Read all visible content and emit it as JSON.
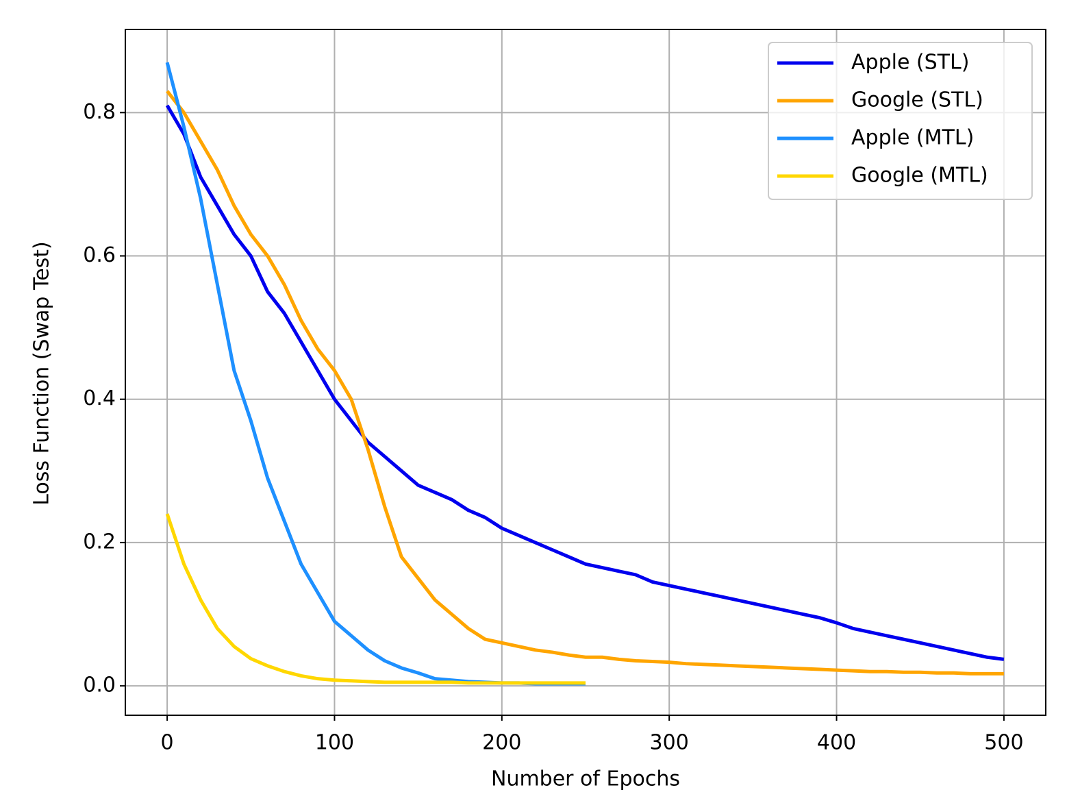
{
  "chart_data": {
    "type": "line",
    "xlabel": "Number of Epochs",
    "ylabel": "Loss Function (Swap Test)",
    "x": [
      0,
      10,
      20,
      30,
      40,
      50,
      60,
      70,
      80,
      90,
      100,
      110,
      120,
      130,
      140,
      150,
      160,
      170,
      180,
      190,
      200,
      210,
      220,
      230,
      240,
      250,
      260,
      270,
      280,
      290,
      300,
      310,
      320,
      330,
      340,
      350,
      360,
      370,
      380,
      390,
      400,
      410,
      420,
      430,
      440,
      450,
      460,
      470,
      480,
      490,
      500
    ],
    "series": [
      {
        "name": "Apple (STL)",
        "color": "#0000ee",
        "values": [
          0.81,
          0.77,
          0.71,
          0.67,
          0.63,
          0.6,
          0.55,
          0.52,
          0.48,
          0.44,
          0.4,
          0.37,
          0.34,
          0.32,
          0.3,
          0.28,
          0.27,
          0.26,
          0.245,
          0.235,
          0.22,
          0.21,
          0.2,
          0.19,
          0.18,
          0.17,
          0.165,
          0.16,
          0.155,
          0.145,
          0.14,
          0.135,
          0.13,
          0.125,
          0.12,
          0.115,
          0.11,
          0.105,
          0.1,
          0.095,
          0.088,
          0.08,
          0.075,
          0.07,
          0.065,
          0.06,
          0.055,
          0.05,
          0.045,
          0.04,
          0.037
        ]
      },
      {
        "name": "Google (STL)",
        "color": "#ffa500",
        "values": [
          0.83,
          0.8,
          0.76,
          0.72,
          0.67,
          0.63,
          0.6,
          0.56,
          0.51,
          0.47,
          0.44,
          0.4,
          0.33,
          0.25,
          0.18,
          0.15,
          0.12,
          0.1,
          0.08,
          0.065,
          0.06,
          0.055,
          0.05,
          0.047,
          0.043,
          0.04,
          0.04,
          0.037,
          0.035,
          0.034,
          0.033,
          0.031,
          0.03,
          0.029,
          0.028,
          0.027,
          0.026,
          0.025,
          0.024,
          0.023,
          0.022,
          0.021,
          0.02,
          0.02,
          0.019,
          0.019,
          0.018,
          0.018,
          0.017,
          0.017,
          0.017
        ]
      },
      {
        "name": "Apple (MTL)",
        "color": "#1e90ff",
        "values": [
          0.87,
          0.78,
          0.68,
          0.56,
          0.44,
          0.37,
          0.29,
          0.23,
          0.17,
          0.13,
          0.09,
          0.07,
          0.05,
          0.035,
          0.025,
          0.018,
          0.01,
          0.008,
          0.006,
          0.005,
          0.004,
          0.004,
          0.003,
          0.003,
          0.003,
          0.003,
          null,
          null,
          null,
          null,
          null,
          null,
          null,
          null,
          null,
          null,
          null,
          null,
          null,
          null,
          null,
          null,
          null,
          null,
          null,
          null,
          null,
          null,
          null,
          null,
          null
        ]
      },
      {
        "name": "Google (MTL)",
        "color": "#ffd700",
        "values": [
          0.24,
          0.17,
          0.12,
          0.08,
          0.055,
          0.038,
          0.028,
          0.02,
          0.014,
          0.01,
          0.008,
          0.007,
          0.006,
          0.005,
          0.005,
          0.005,
          0.005,
          0.005,
          0.004,
          0.004,
          0.004,
          0.004,
          0.004,
          0.004,
          0.004,
          0.004,
          null,
          null,
          null,
          null,
          null,
          null,
          null,
          null,
          null,
          null,
          null,
          null,
          null,
          null,
          null,
          null,
          null,
          null,
          null,
          null,
          null,
          null,
          null,
          null,
          null
        ]
      }
    ],
    "xlim": [
      -25,
      525
    ],
    "ylim": [
      -0.041,
      0.916
    ],
    "xticks": [
      0,
      100,
      200,
      300,
      400,
      500
    ],
    "yticks": [
      {
        "value": 0,
        "label": "0.0"
      },
      0.2,
      0.4,
      0.6,
      0.8
    ],
    "grid": true,
    "legend": "upper right"
  }
}
